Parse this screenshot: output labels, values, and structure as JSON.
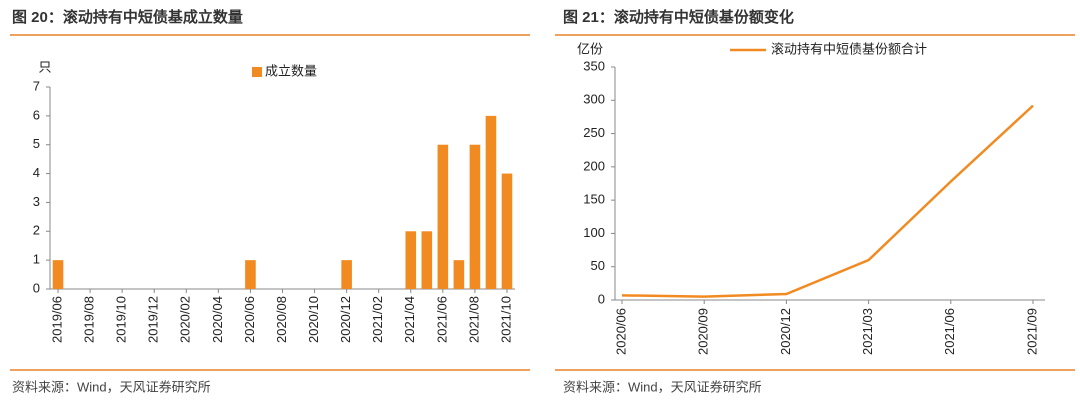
{
  "chart_data": [
    {
      "type": "bar",
      "title": "图 20：滚动持有中短债基成立数量",
      "y_label": "只",
      "categories": [
        "2019/06",
        null,
        "2019/08",
        null,
        "2019/10",
        null,
        "2019/12",
        null,
        "2020/02",
        null,
        "2020/04",
        null,
        "2020/06",
        null,
        "2020/08",
        null,
        "2020/10",
        null,
        "2020/12",
        null,
        "2021/02",
        null,
        "2021/04",
        null,
        "2021/06",
        null,
        "2021/08",
        null,
        "2021/10"
      ],
      "series": [
        {
          "name": "成立数量",
          "color": "#f28a22",
          "values": [
            1,
            0,
            0,
            0,
            0,
            0,
            0,
            0,
            0,
            0,
            0,
            0,
            1,
            0,
            0,
            0,
            0,
            0,
            1,
            0,
            0,
            0,
            2,
            2,
            5,
            1,
            5,
            6,
            4
          ]
        }
      ],
      "ylim": [
        0,
        7
      ],
      "yticks": [
        0,
        1,
        2,
        3,
        4,
        5,
        6,
        7
      ],
      "source": "资料来源：Wind，天风证券研究所"
    },
    {
      "type": "line",
      "title": "图 21：滚动持有中短债基份额变化",
      "y_label": "亿份",
      "categories": [
        "2020/06",
        "2020/09",
        "2020/12",
        "2021/03",
        "2021/06",
        "2021/09"
      ],
      "series": [
        {
          "name": "滚动持有中短债基份额合计",
          "color": "#f28a22",
          "values": [
            7,
            5,
            9,
            60,
            178,
            292
          ]
        }
      ],
      "ylim": [
        0,
        350
      ],
      "yticks": [
        0,
        50,
        100,
        150,
        200,
        250,
        300,
        350
      ],
      "source": "资料来源：Wind，天风证券研究所"
    }
  ]
}
